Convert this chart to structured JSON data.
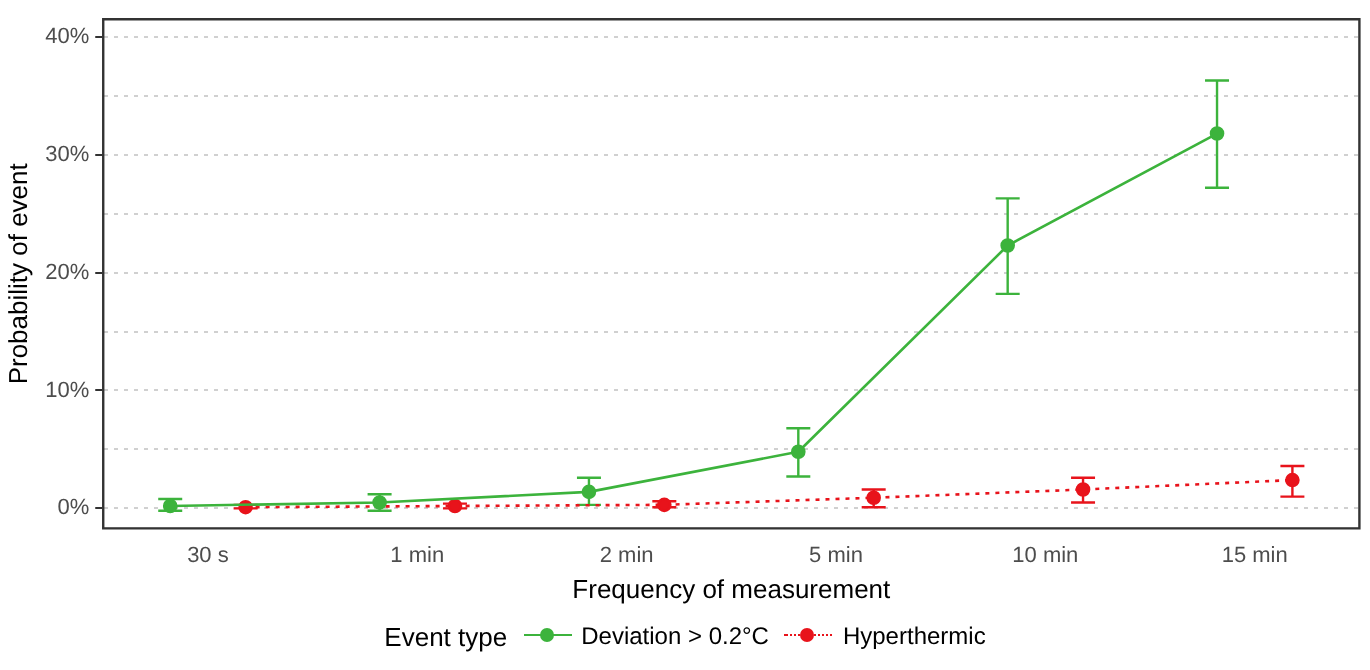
{
  "chart_data": {
    "type": "line",
    "xlabel": "Frequency of measurement",
    "ylabel": "Probability of event",
    "legend_title": "Event type",
    "categories": [
      "30 s",
      "1 min",
      "2 min",
      "5 min",
      "10 min",
      "15 min"
    ],
    "ylim": [
      -1.7,
      41.5
    ],
    "yticks": [
      {
        "value": 0,
        "label": "0%"
      },
      {
        "value": 5,
        "label": null
      },
      {
        "value": 10,
        "label": "10%"
      },
      {
        "value": 15,
        "label": null
      },
      {
        "value": 20,
        "label": "20%"
      },
      {
        "value": 25,
        "label": null
      },
      {
        "value": 30,
        "label": "30%"
      },
      {
        "value": 35,
        "label": null
      },
      {
        "value": 40,
        "label": "40%"
      }
    ],
    "grid": "y",
    "legend": "bottom",
    "marker": "circle",
    "series": [
      {
        "name": "Deviation > 0.2°C",
        "color": "#3cb33c",
        "line_style": "solid",
        "values": [
          0.2,
          0.5,
          1.4,
          4.8,
          22.3,
          31.8
        ],
        "errors": [
          [
            -0.2,
            0.8
          ],
          [
            -0.2,
            1.2
          ],
          [
            0.3,
            2.6
          ],
          [
            2.7,
            6.8
          ],
          [
            18.2,
            26.3
          ],
          [
            27.2,
            36.3
          ]
        ]
      },
      {
        "name": "Hyperthermic",
        "color": "#e8131b",
        "line_style": "dotted",
        "values": [
          0.1,
          0.2,
          0.3,
          0.9,
          1.6,
          2.4
        ],
        "errors": [
          [
            0,
            0.3
          ],
          [
            0,
            0.4
          ],
          [
            0.1,
            0.6
          ],
          [
            0.1,
            1.6
          ],
          [
            0.5,
            2.6
          ],
          [
            1.0,
            3.6
          ]
        ]
      }
    ]
  }
}
